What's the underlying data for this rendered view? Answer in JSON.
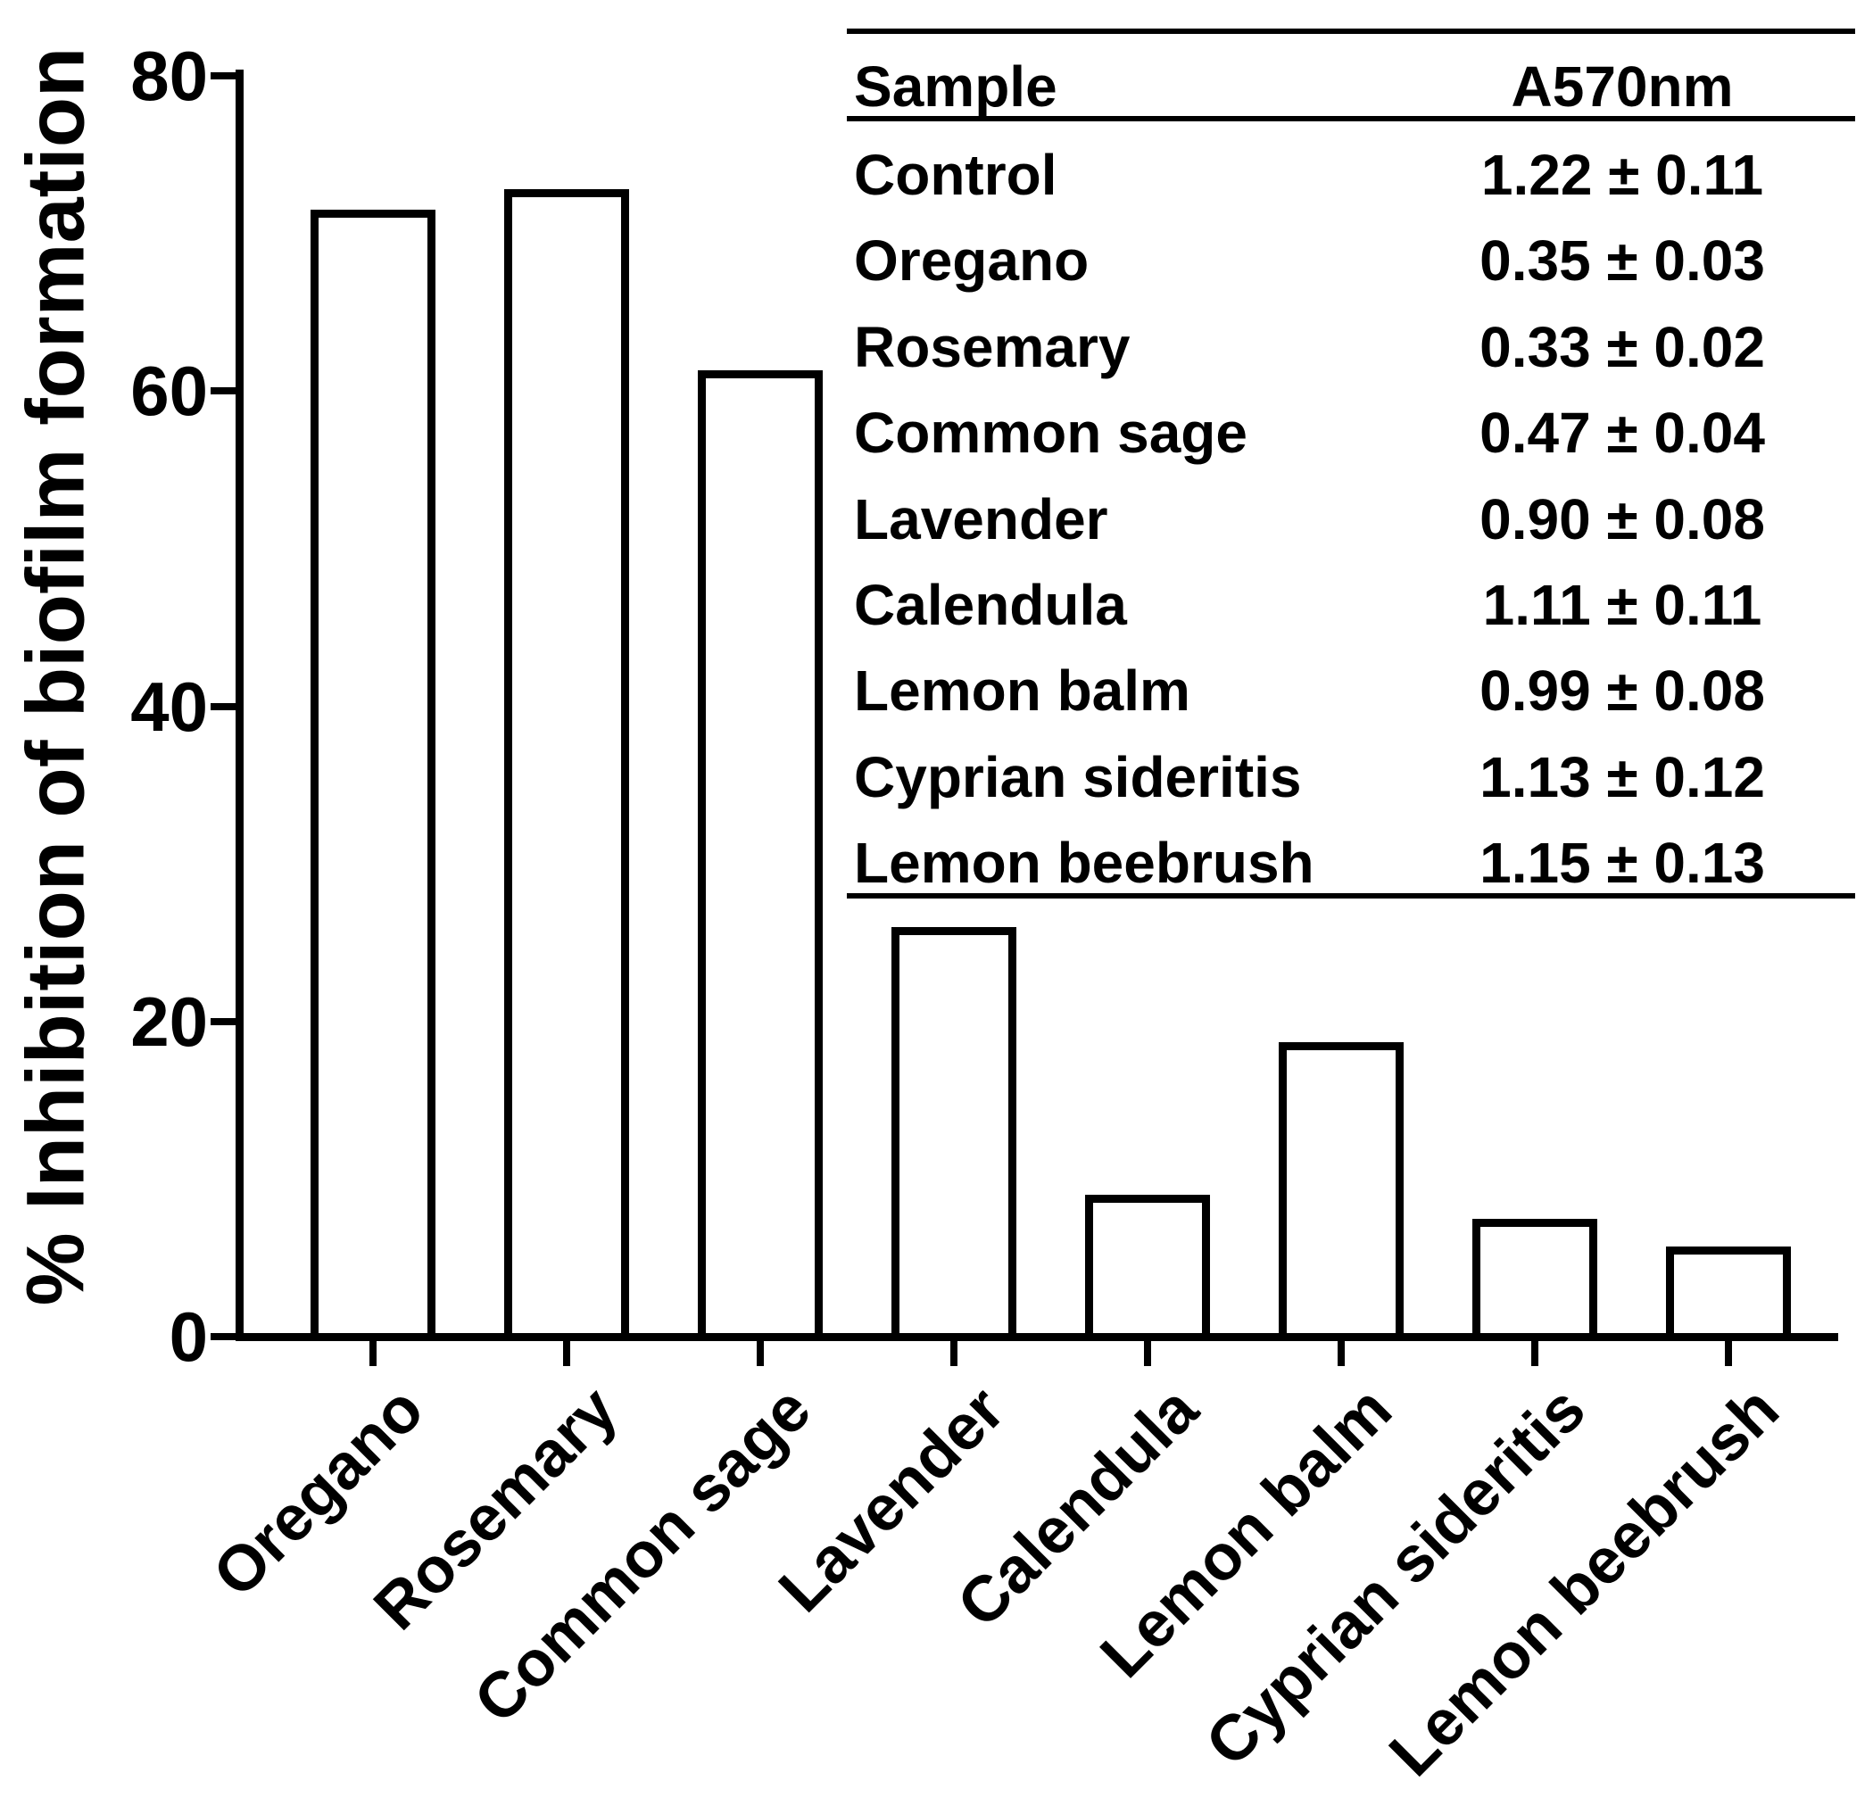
{
  "figure": {
    "background_color": "#ffffff",
    "ink_color": "#000000"
  },
  "chart_data": {
    "type": "bar",
    "title": "",
    "xlabel": "",
    "ylabel": "% Inhibition of biofilm formation",
    "ylim": [
      0,
      80
    ],
    "yticks": [
      0,
      20,
      40,
      60,
      80
    ],
    "grid": false,
    "legend_position": "none",
    "bar_fill": "#ffffff",
    "bar_border": "#000000",
    "xlabel_rotation_deg": 45,
    "categories": [
      "Oregano",
      "Rosemary",
      "Common sage",
      "Lavender",
      "Calendula",
      "Lemon balm",
      "Cyprian sideritis",
      "Lemon beebrush"
    ],
    "values": [
      71.5,
      72.8,
      61.3,
      26.0,
      9.0,
      18.7,
      7.5,
      5.7
    ]
  },
  "inset_table": {
    "columns": [
      "Sample",
      "A570nm"
    ],
    "rows": [
      {
        "sample": "Control",
        "a570nm": "1.22 ± 0.11"
      },
      {
        "sample": "Oregano",
        "a570nm": "0.35 ± 0.03"
      },
      {
        "sample": "Rosemary",
        "a570nm": "0.33 ± 0.02"
      },
      {
        "sample": "Common sage",
        "a570nm": "0.47 ± 0.04"
      },
      {
        "sample": "Lavender",
        "a570nm": "0.90 ± 0.08"
      },
      {
        "sample": "Calendula",
        "a570nm": "1.11 ± 0.11"
      },
      {
        "sample": "Lemon balm",
        "a570nm": "0.99 ± 0.08"
      },
      {
        "sample": "Cyprian sideritis",
        "a570nm": "1.13 ± 0.12"
      },
      {
        "sample": "Lemon beebrush",
        "a570nm": "1.15 ± 0.13"
      }
    ]
  }
}
